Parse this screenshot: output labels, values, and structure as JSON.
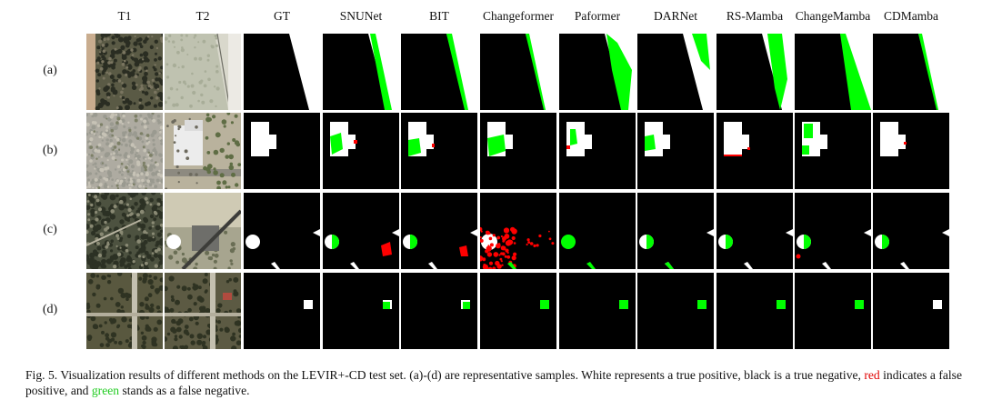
{
  "columns": [
    "T1",
    "T2",
    "GT",
    "SNUNet",
    "BIT",
    "Changeformer",
    "Paformer",
    "DARNet",
    "RS-Mamba",
    "ChangeMamba",
    "CDMamba"
  ],
  "rows": [
    "(a)",
    "(b)",
    "(c)",
    "(d)"
  ],
  "colors": {
    "true_positive": "#ffffff",
    "true_negative": "#000000",
    "false_positive": "#ff0000",
    "false_negative": "#00ff00"
  },
  "caption": {
    "part1": "Fig. 5.  Visualization results of different methods on the LEVIR+-CD test set. (a)-(d) are representative samples. White represents a true positive, black is a true negative, ",
    "red_word": "red",
    "part2": " indicates a false positive, and ",
    "green_word": "green",
    "part3": " stands as a false negative."
  }
}
